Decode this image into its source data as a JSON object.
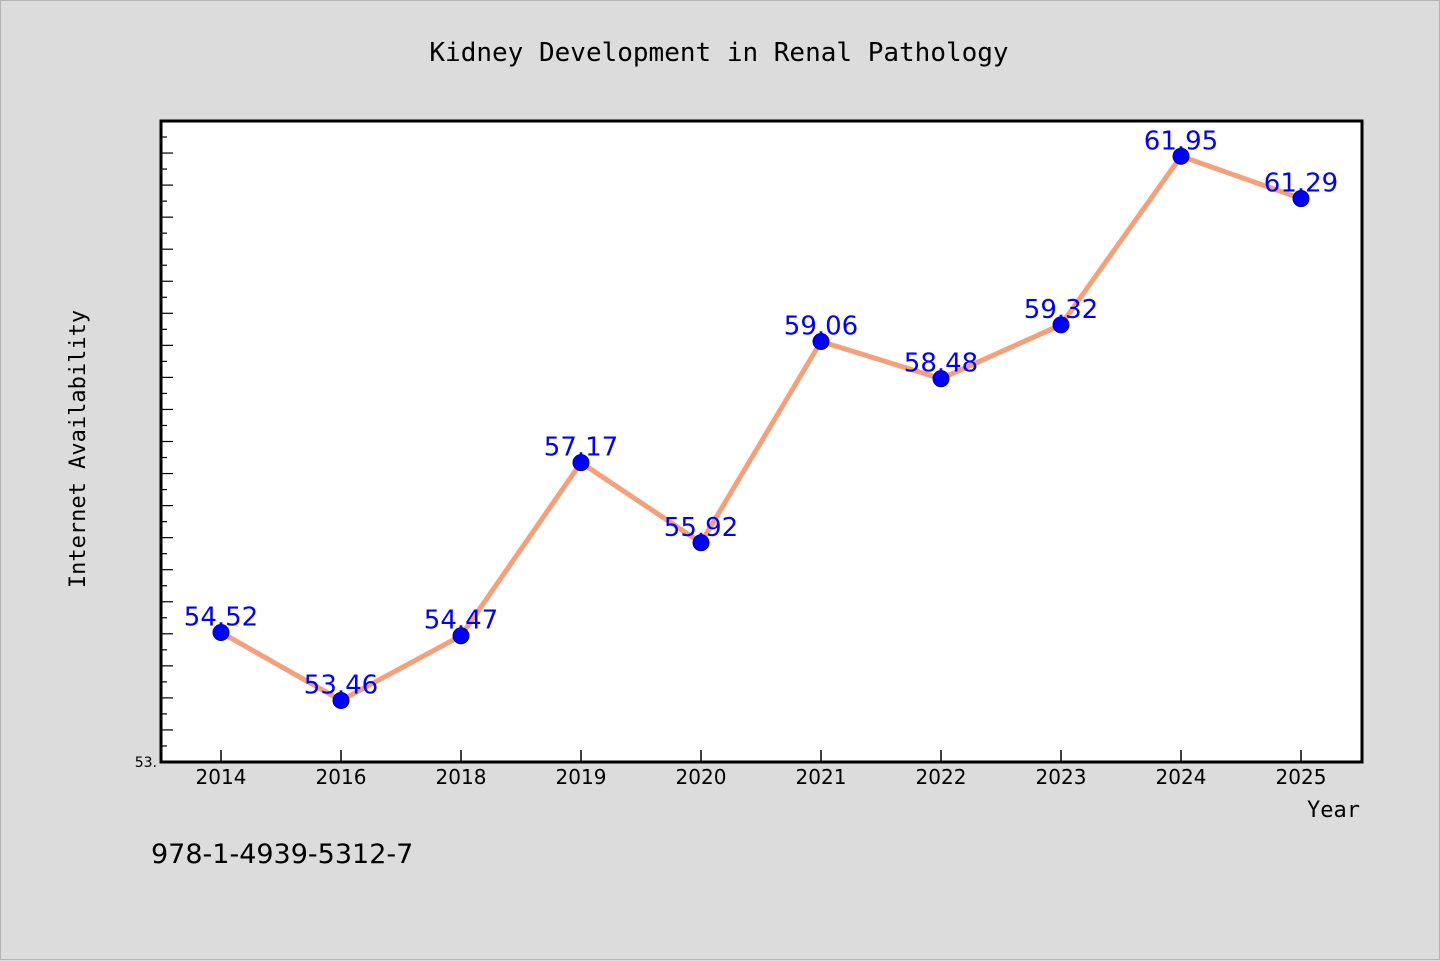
{
  "chart_data": {
    "type": "line",
    "title": "Kidney Development in Renal Pathology",
    "xlabel": "Year",
    "ylabel": "Internet Availability",
    "categories": [
      "2014",
      "2016",
      "2018",
      "2019",
      "2020",
      "2021",
      "2022",
      "2023",
      "2024",
      "2025"
    ],
    "values": [
      54.52,
      53.46,
      54.47,
      57.17,
      55.92,
      59.06,
      58.48,
      59.32,
      61.95,
      61.29
    ],
    "data_labels": [
      "54.52",
      "53.46",
      "54.47",
      "57.17",
      "55.92",
      "59.06",
      "58.48",
      "59.32",
      "61.95",
      "61.29"
    ],
    "ylim": [
      52.5,
      62.5
    ],
    "y_tick_label": "53.",
    "grid": false,
    "legend": "none",
    "colors": {
      "line": "#f4a07a",
      "marker": "#0000ff",
      "labels": "#0000ff",
      "background": "#dcdcdc",
      "plot_area": "#ffffff"
    }
  },
  "footer": {
    "isbn": "978-1-4939-5312-7"
  }
}
